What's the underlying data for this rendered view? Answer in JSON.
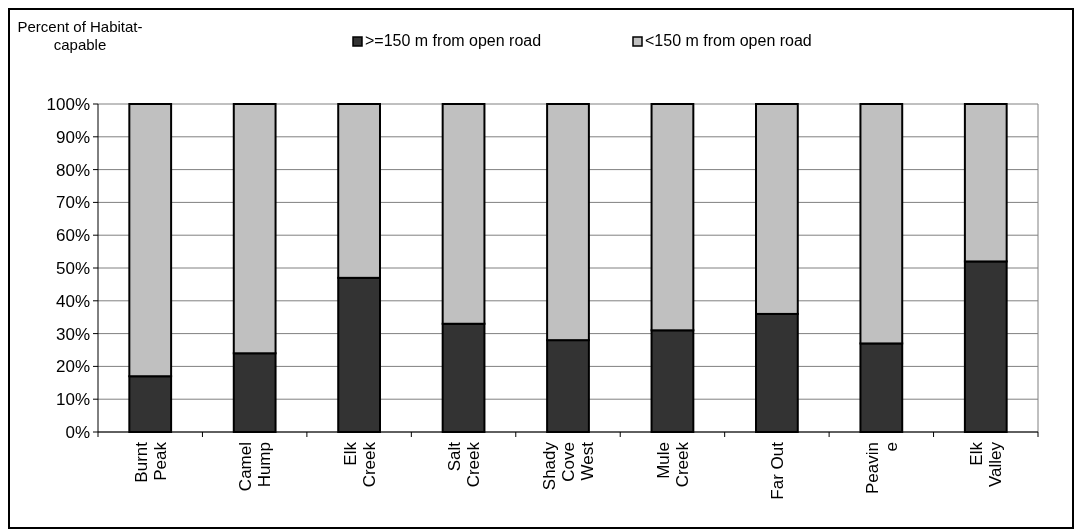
{
  "chart_data": {
    "type": "bar",
    "stacked": true,
    "ylabel": "Percent of Habitat-capable",
    "categories": [
      "Burnt\nPeak",
      "Camel\nHump",
      "Elk\nCreek",
      "Salt\nCreek",
      "Shady\nCove\nWest",
      "Mule\nCreek",
      "Far Out",
      "Peavin\ne",
      "Elk\nValley"
    ],
    "series": [
      {
        "name": ">=150 m from open road",
        "color": "#333333",
        "values": [
          17,
          24,
          47,
          33,
          28,
          31,
          36,
          27,
          52
        ]
      },
      {
        "name": "<150 m from open road",
        "color": "#c0c0c0",
        "values": [
          83,
          76,
          53,
          67,
          72,
          69,
          64,
          73,
          48
        ]
      }
    ],
    "ylim": [
      0,
      100
    ],
    "yticks": [
      {
        "value": 0,
        "label": "0%"
      },
      {
        "value": 10,
        "label": "10%"
      },
      {
        "value": 20,
        "label": "20%"
      },
      {
        "value": 30,
        "label": "30%"
      },
      {
        "value": 40,
        "label": "40%"
      },
      {
        "value": 50,
        "label": "50%"
      },
      {
        "value": 60,
        "label": "60%"
      },
      {
        "value": 70,
        "label": "70%"
      },
      {
        "value": 80,
        "label": "80%"
      },
      {
        "value": 90,
        "label": "90%"
      },
      {
        "value": 100,
        "label": "100%"
      }
    ],
    "grid": "y",
    "legend": "top"
  }
}
